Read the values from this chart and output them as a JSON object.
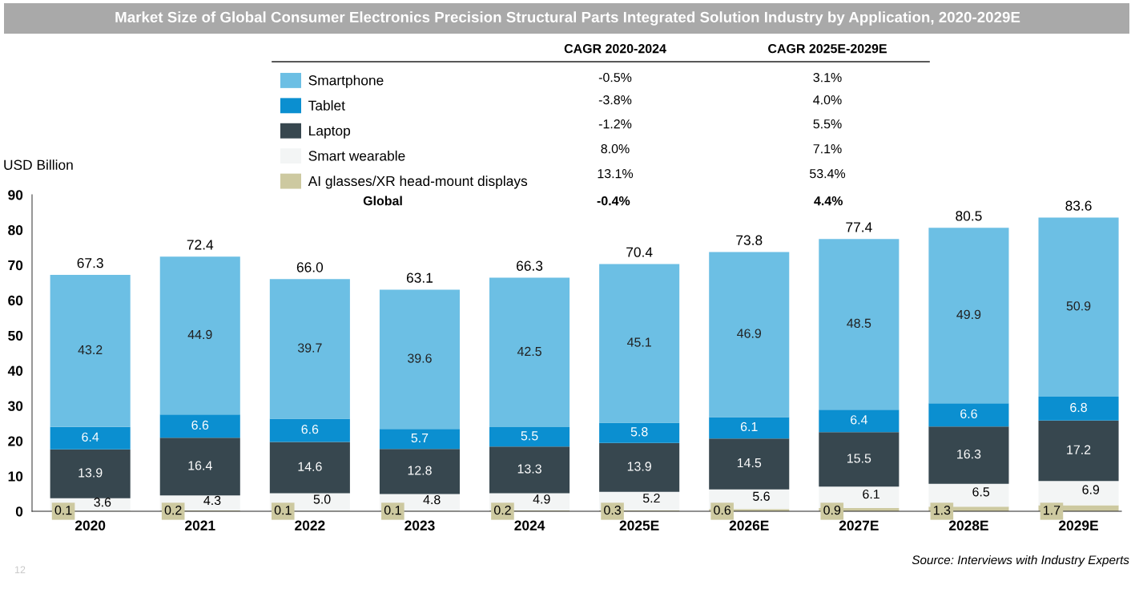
{
  "chart_data": {
    "type": "bar",
    "stacked": true,
    "title": "Market Size of Global Consumer Electronics Precision Structural Parts Integrated Solution Industry by Application, 2020-2029E",
    "ylabel": "USD Billion",
    "categories": [
      "2020",
      "2021",
      "2022",
      "2023",
      "2024",
      "2025E",
      "2026E",
      "2027E",
      "2028E",
      "2029E"
    ],
    "series": [
      {
        "name": "AI glasses/XR head-mount displays",
        "color": "#cdc9a0",
        "values": [
          0.1,
          0.2,
          0.1,
          0.1,
          0.2,
          0.3,
          0.6,
          0.9,
          1.3,
          1.7
        ]
      },
      {
        "name": "Smart wearable",
        "color": "#f3f5f5",
        "values": [
          3.6,
          4.3,
          5.0,
          4.8,
          4.9,
          5.2,
          5.6,
          6.1,
          6.5,
          6.9
        ],
        "value_labels": [
          "3.6",
          "4.3",
          "5.0",
          "4.8",
          "4.9",
          "5.2",
          "5.6",
          "6.1",
          "6.5",
          "6.9"
        ]
      },
      {
        "name": "Laptop",
        "color": "#37474f",
        "values": [
          13.9,
          16.4,
          14.6,
          12.8,
          13.3,
          13.9,
          14.5,
          15.5,
          16.3,
          17.2
        ]
      },
      {
        "name": "Tablet",
        "color": "#0b8fd0",
        "values": [
          6.4,
          6.6,
          6.6,
          5.7,
          5.5,
          5.8,
          6.1,
          6.4,
          6.6,
          6.8
        ]
      },
      {
        "name": "Smartphone",
        "color": "#6cbfe4",
        "values": [
          43.2,
          44.9,
          39.7,
          39.6,
          42.5,
          45.1,
          46.9,
          48.5,
          49.9,
          50.9
        ]
      }
    ],
    "totals": [
      "67.3",
      "72.4",
      "66.0",
      "63.1",
      "66.3",
      "70.4",
      "73.8",
      "77.4",
      "80.5",
      "83.6"
    ],
    "data_labels": true,
    "ylim": [
      0,
      90
    ],
    "yticks": [
      0,
      10,
      20,
      30,
      40,
      50,
      60,
      70,
      80,
      90
    ],
    "grid": false,
    "legend": "top",
    "annotations": [
      "CAGR 2020-2024",
      "CAGR 2025E-2029E",
      "-0.5%",
      "3.1%",
      "-3.8%",
      "4.0%",
      "-1.2%",
      "5.5%",
      "8.0%",
      "7.1%",
      "13.1%",
      "53.4%",
      "Global",
      "-0.4%",
      "4.4%",
      "Source: Interviews with Industry Experts",
      "12"
    ]
  }
}
